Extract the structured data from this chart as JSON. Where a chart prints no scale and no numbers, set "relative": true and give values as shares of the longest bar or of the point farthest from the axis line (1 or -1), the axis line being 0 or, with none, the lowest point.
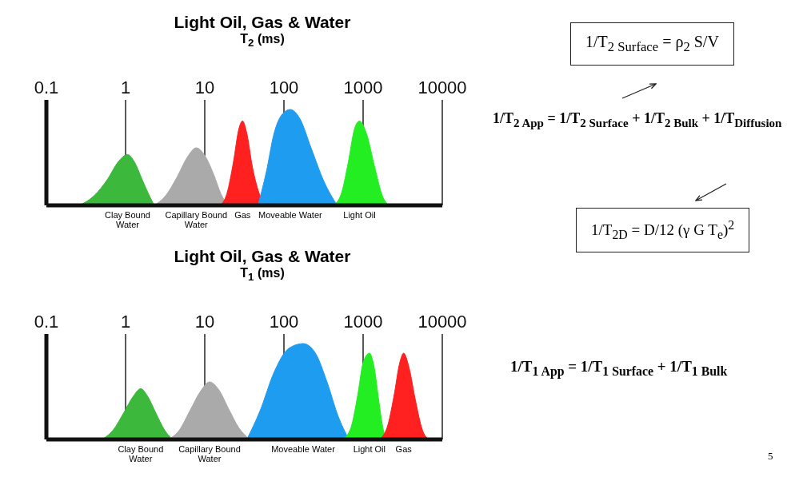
{
  "chart_data": [
    {
      "type": "area",
      "title": "Light Oil, Gas & Water",
      "xlabel": "T$_{2}$ (ms)",
      "log": "x",
      "xlim": [
        0.1,
        10000
      ],
      "xticks": [
        0.1,
        1,
        10,
        100,
        1000,
        10000
      ],
      "grid": "x",
      "relative": true,
      "series": [
        {
          "name": "Clay Bound Water",
          "color": "#3cb83c",
          "x": [
            0.26,
            0.4,
            0.6,
            0.8,
            1.06,
            1.3,
            1.6,
            2,
            2.3
          ],
          "values": [
            0,
            0.1,
            0.28,
            0.45,
            0.53,
            0.45,
            0.28,
            0.1,
            0
          ]
        },
        {
          "name": "Capillary Bound Water",
          "color": "#aaaaaa",
          "x": [
            2.3,
            3.2,
            4.5,
            6,
            7.8,
            10,
            13,
            16,
            19.6
          ],
          "values": [
            0,
            0.1,
            0.3,
            0.5,
            0.6,
            0.52,
            0.32,
            0.12,
            0
          ]
        },
        {
          "name": "Gas",
          "color": "#ff2020",
          "x": [
            15.5,
            19,
            23,
            27,
            30,
            34,
            40,
            50,
            59
          ],
          "values": [
            0,
            0.12,
            0.45,
            0.8,
            0.88,
            0.75,
            0.4,
            0.1,
            0
          ]
        },
        {
          "name": "Moveable Water",
          "color": "#1e9cf0",
          "x": [
            47,
            60,
            75,
            95,
            120,
            160,
            220,
            320,
            470
          ],
          "values": [
            0,
            0.35,
            0.75,
            0.95,
            1,
            0.9,
            0.6,
            0.25,
            0
          ]
        },
        {
          "name": "Light Oil",
          "color": "#22ee22",
          "x": [
            420,
            530,
            650,
            780,
            900,
            1100,
            1400,
            1750,
            2100
          ],
          "values": [
            0,
            0.12,
            0.45,
            0.8,
            0.88,
            0.75,
            0.4,
            0.1,
            0
          ]
        }
      ]
    },
    {
      "type": "area",
      "title": "Light Oil, Gas & Water",
      "xlabel": "T$_{1}$ (ms)",
      "log": "x",
      "xlim": [
        0.1,
        10000
      ],
      "xticks": [
        0.1,
        1,
        10,
        100,
        1000,
        10000
      ],
      "grid": "x",
      "relative": true,
      "series": [
        {
          "name": "Clay Bound Water",
          "color": "#3cb83c",
          "x": [
            0.5,
            0.7,
            0.95,
            1.25,
            1.55,
            1.9,
            2.4,
            3.1,
            3.9
          ],
          "values": [
            0,
            0.1,
            0.28,
            0.45,
            0.53,
            0.45,
            0.28,
            0.1,
            0
          ]
        },
        {
          "name": "Capillary Bound Water",
          "color": "#aaaaaa",
          "x": [
            3.5,
            4.8,
            6.5,
            8.8,
            11.5,
            15,
            20,
            27,
            37
          ],
          "values": [
            0,
            0.1,
            0.3,
            0.5,
            0.6,
            0.52,
            0.32,
            0.12,
            0
          ]
        },
        {
          "name": "Moveable Water",
          "color": "#1e9cf0",
          "x": [
            34,
            50,
            75,
            115,
            175,
            250,
            350,
            480,
            660
          ],
          "values": [
            0,
            0.3,
            0.7,
            0.95,
            1,
            0.9,
            0.6,
            0.25,
            0
          ]
        },
        {
          "name": "Light Oil",
          "color": "#22ee22",
          "x": [
            550,
            700,
            850,
            1000,
            1200,
            1380,
            1580,
            1800,
            2000
          ],
          "values": [
            0,
            0.12,
            0.45,
            0.8,
            0.9,
            0.75,
            0.4,
            0.1,
            0
          ]
        },
        {
          "name": "Gas",
          "color": "#ff2020",
          "x": [
            1580,
            2000,
            2450,
            2900,
            3250,
            3800,
            4600,
            5600,
            6800
          ],
          "values": [
            0,
            0.12,
            0.45,
            0.8,
            0.9,
            0.75,
            0.4,
            0.1,
            0
          ]
        }
      ]
    },
    {
      "type": "other",
      "annotations": [
        "1/T$_{2 Surface}$ = ρ$_{2}$ S/V",
        "1/T$_{2 App}$ = 1/T$_{2 Surface}$ + 1/T$_{2 Bulk}$ + 1/T$_{Diffusion}$",
        "1/T$_{2D}$ = D/12 (γ G T$_{e}$)$^{2}$",
        "1/T$_{1 App}$ = 1/T$_{1 Surface}$ + 1/T$_{1 Bulk}$",
        "5"
      ]
    }
  ]
}
